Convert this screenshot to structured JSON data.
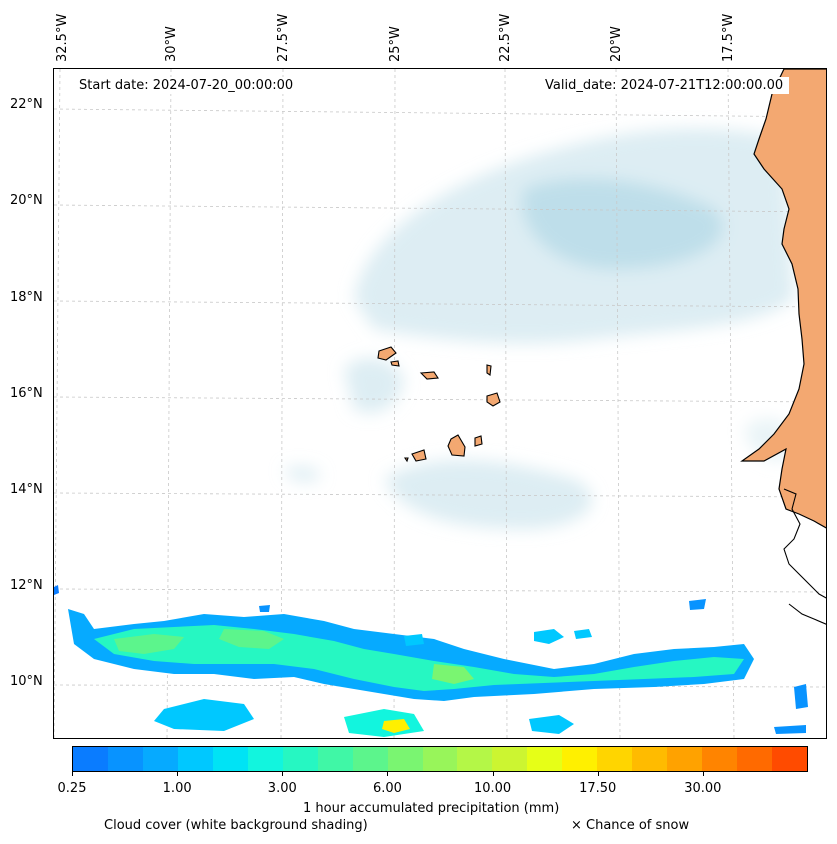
{
  "map": {
    "start_date": "Start date: 2024-07-20_00:00:00",
    "valid_date": "Valid_date: 2024-07-21T12:00:00.00",
    "longitude_labels": [
      "32.5°W",
      "30°W",
      "27.5°W",
      "25°W",
      "22.5°W",
      "20°W",
      "17.5°W"
    ],
    "latitude_labels": [
      "22°N",
      "20°N",
      "18°N",
      "16°N",
      "14°N",
      "12°N",
      "10°N"
    ],
    "extent": {
      "lon_min": -32.8,
      "lon_max": -15.2,
      "lat_min": 8.9,
      "lat_max": 22.8
    }
  },
  "colorbar": {
    "label": "1 hour accumulated precipitation (mm)",
    "tick_labels": [
      "0.25",
      "1.00",
      "3.00",
      "6.00",
      "10.00",
      "17.50",
      "30.00"
    ],
    "colors": [
      "#0a7cff",
      "#0893ff",
      "#06aaff",
      "#00c8ff",
      "#00e3f5",
      "#12f5de",
      "#26f7c2",
      "#40f7a6",
      "#5cf58c",
      "#7af571",
      "#98f55a",
      "#b4f747",
      "#ccf531",
      "#e6ff17",
      "#fff000",
      "#ffd500",
      "#ffbb00",
      "#ffa200",
      "#ff8400",
      "#ff6a00",
      "#ff4b00"
    ]
  },
  "legend": {
    "cloud_cover": "Cloud cover (white background shading)",
    "snow": "× Chance of snow"
  }
}
